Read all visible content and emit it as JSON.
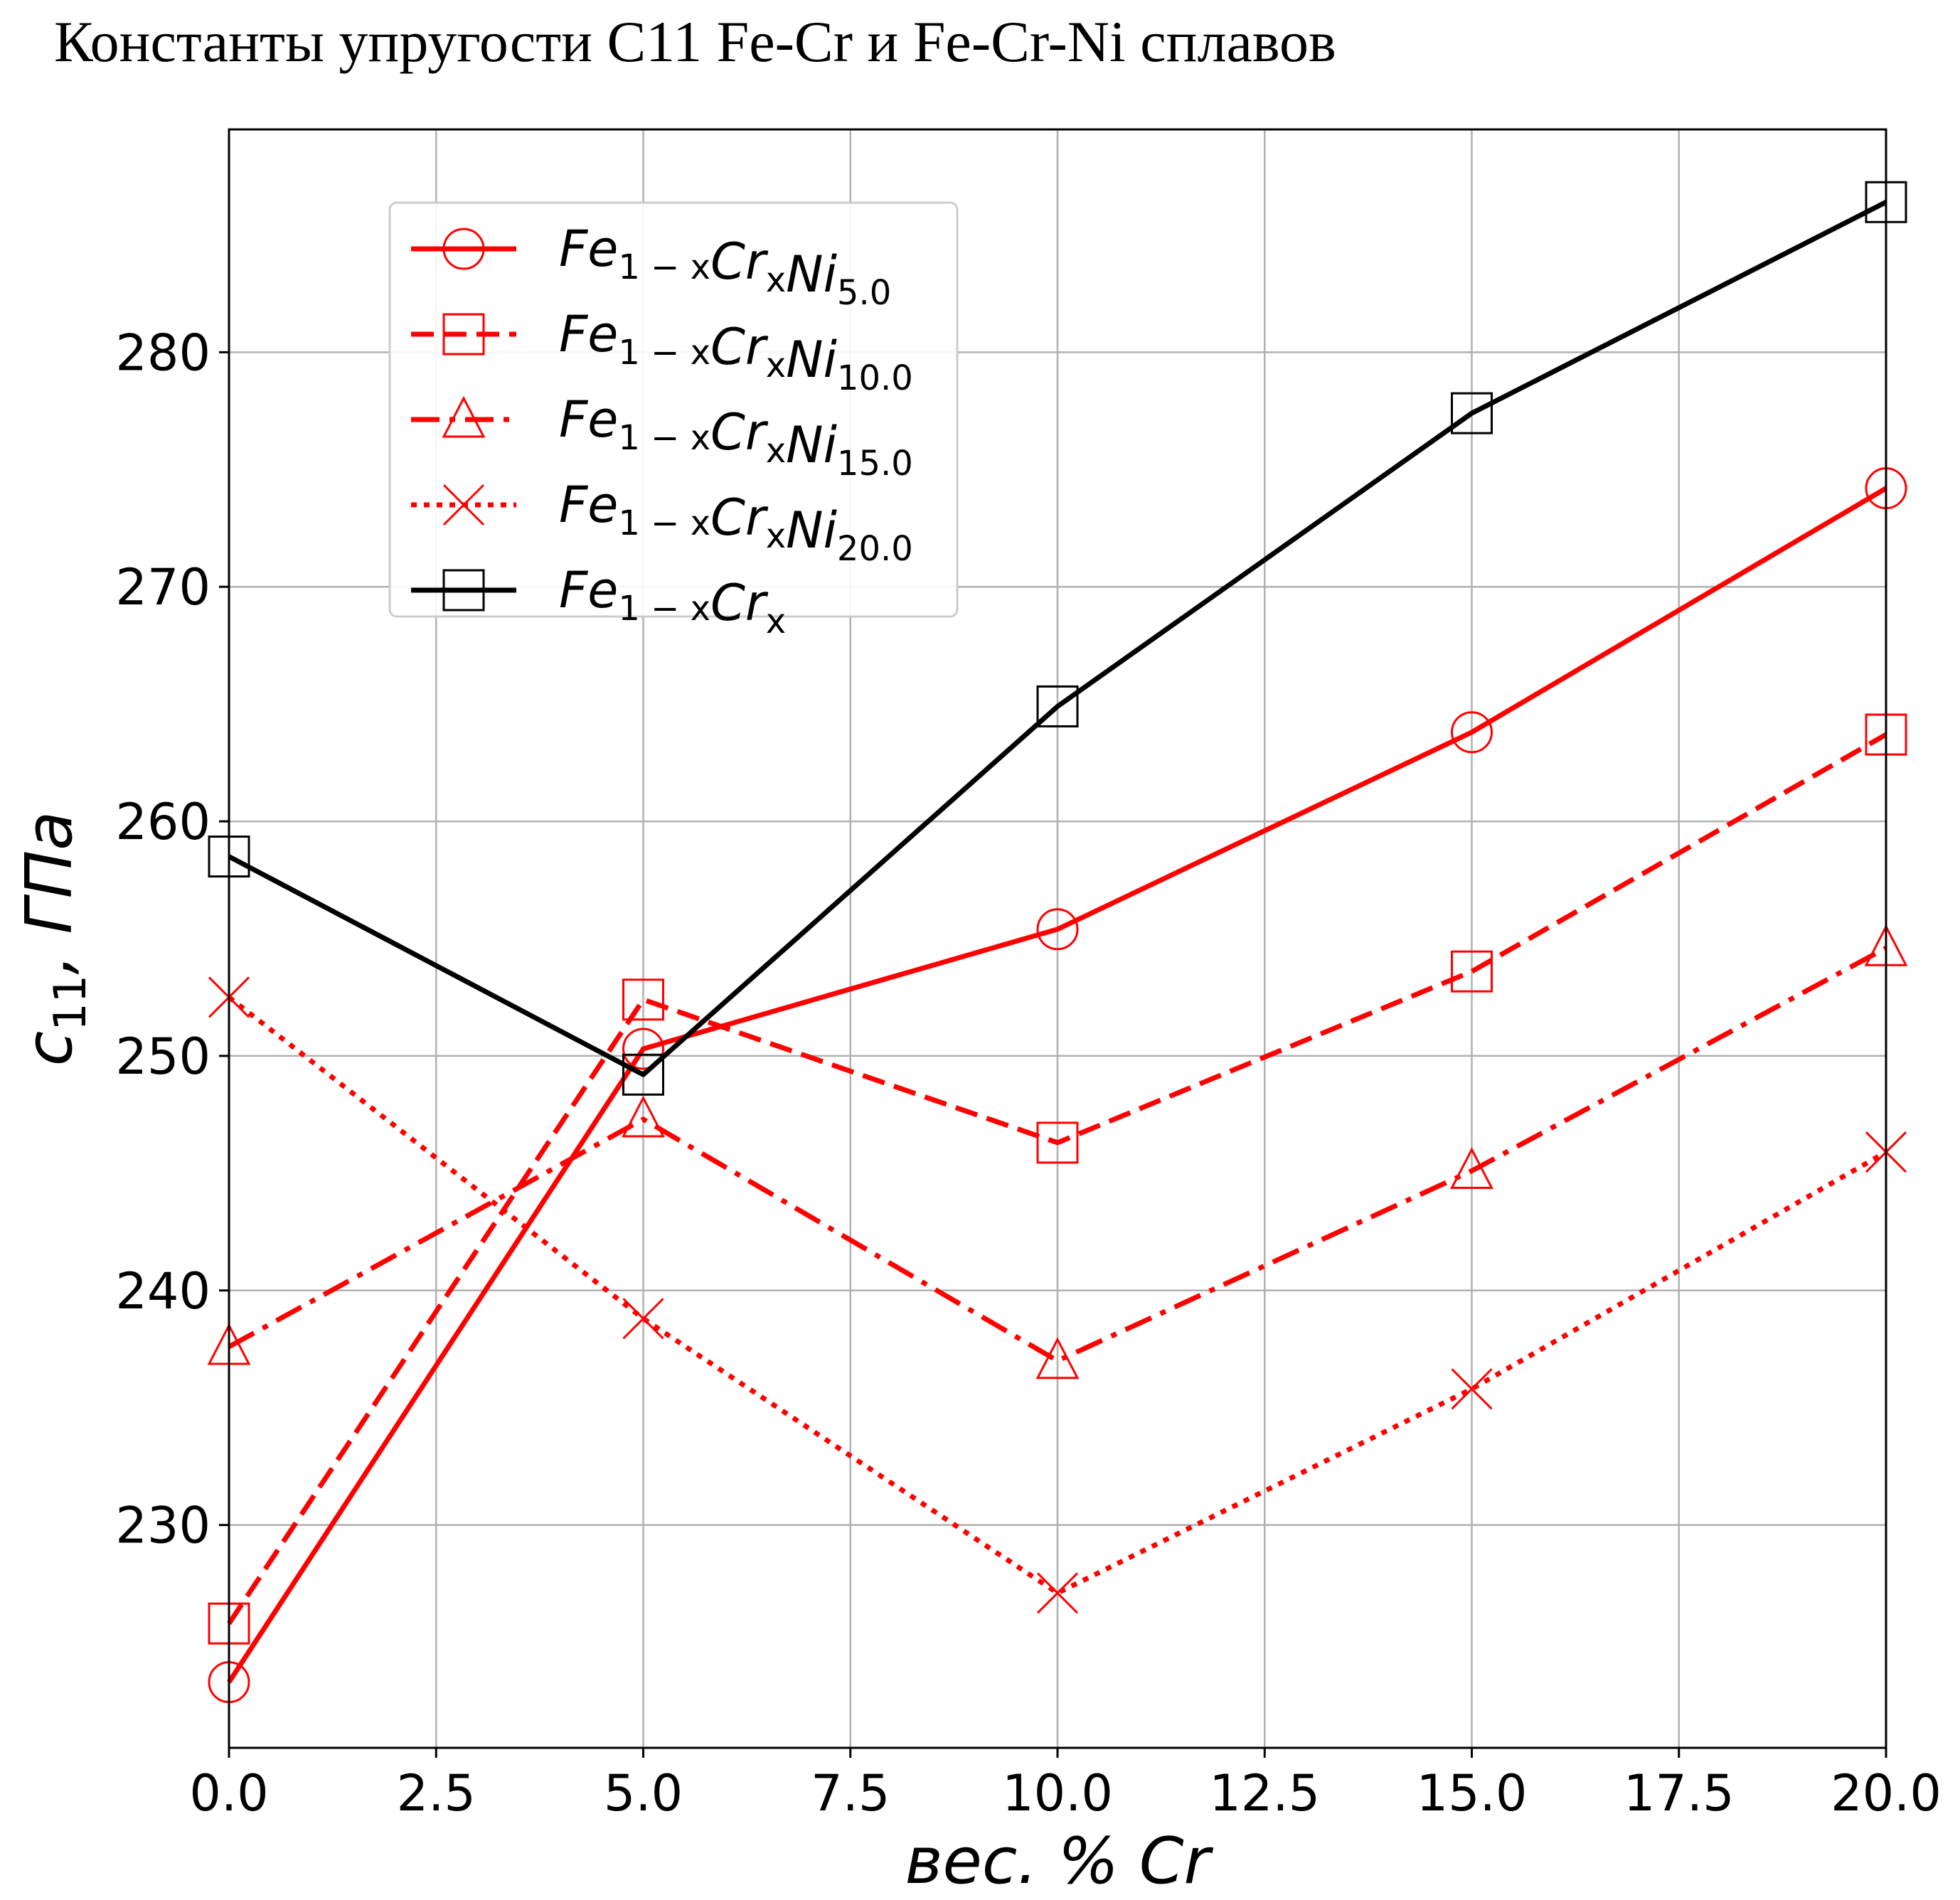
{
  "chart_data": {
    "type": "line",
    "title": "Константы упругости C11 Fe-Cr и Fe-Cr-Ni сплавов",
    "xlabel": "вес. % Cr",
    "ylabel_main": "c",
    "ylabel_sub": "11",
    "ylabel_unit": ",  ГПа",
    "xlim": [
      0,
      20
    ],
    "ylim": [
      220.5,
      289.5
    ],
    "xticks": [
      0.0,
      2.5,
      5.0,
      7.5,
      10.0,
      12.5,
      15.0,
      17.5,
      20.0
    ],
    "xtick_labels": [
      "0.0",
      "2.5",
      "5.0",
      "7.5",
      "10.0",
      "12.5",
      "15.0",
      "17.5",
      "20.0"
    ],
    "yticks": [
      230,
      240,
      250,
      260,
      270,
      280
    ],
    "ytick_labels": [
      "230",
      "240",
      "250",
      "260",
      "270",
      "280"
    ],
    "grid": true,
    "legend_position": "upper-left",
    "x": [
      0,
      5,
      10,
      15,
      20
    ],
    "series": [
      {
        "legend_parts": [
          "Fe",
          "1 − x",
          "Cr",
          "x",
          "Ni",
          "5.0"
        ],
        "values": [
          223.3,
          250.3,
          255.4,
          263.8,
          274.2
        ],
        "color": "#ff0000",
        "line": "solid",
        "marker": "circle"
      },
      {
        "legend_parts": [
          "Fe",
          "1 − x",
          "Cr",
          "x",
          "Ni",
          "10.0"
        ],
        "values": [
          225.8,
          252.4,
          246.3,
          253.6,
          263.7
        ],
        "color": "#ff0000",
        "line": "dashed",
        "marker": "square"
      },
      {
        "legend_parts": [
          "Fe",
          "1 − x",
          "Cr",
          "x",
          "Ni",
          "15.0"
        ],
        "values": [
          237.6,
          247.3,
          237.0,
          245.1,
          254.6
        ],
        "color": "#ff0000",
        "line": "dashdot",
        "marker": "triangle"
      },
      {
        "legend_parts": [
          "Fe",
          "1 − x",
          "Cr",
          "x",
          "Ni",
          "20.0"
        ],
        "values": [
          252.5,
          238.8,
          227.1,
          235.8,
          245.9
        ],
        "color": "#ff0000",
        "line": "dotted",
        "marker": "x"
      },
      {
        "legend_parts": [
          "Fe",
          "1 − x",
          "Cr",
          "x",
          "",
          ""
        ],
        "values": [
          258.5,
          249.2,
          264.9,
          277.4,
          286.4
        ],
        "color": "#000000",
        "line": "solid",
        "marker": "square"
      }
    ]
  }
}
